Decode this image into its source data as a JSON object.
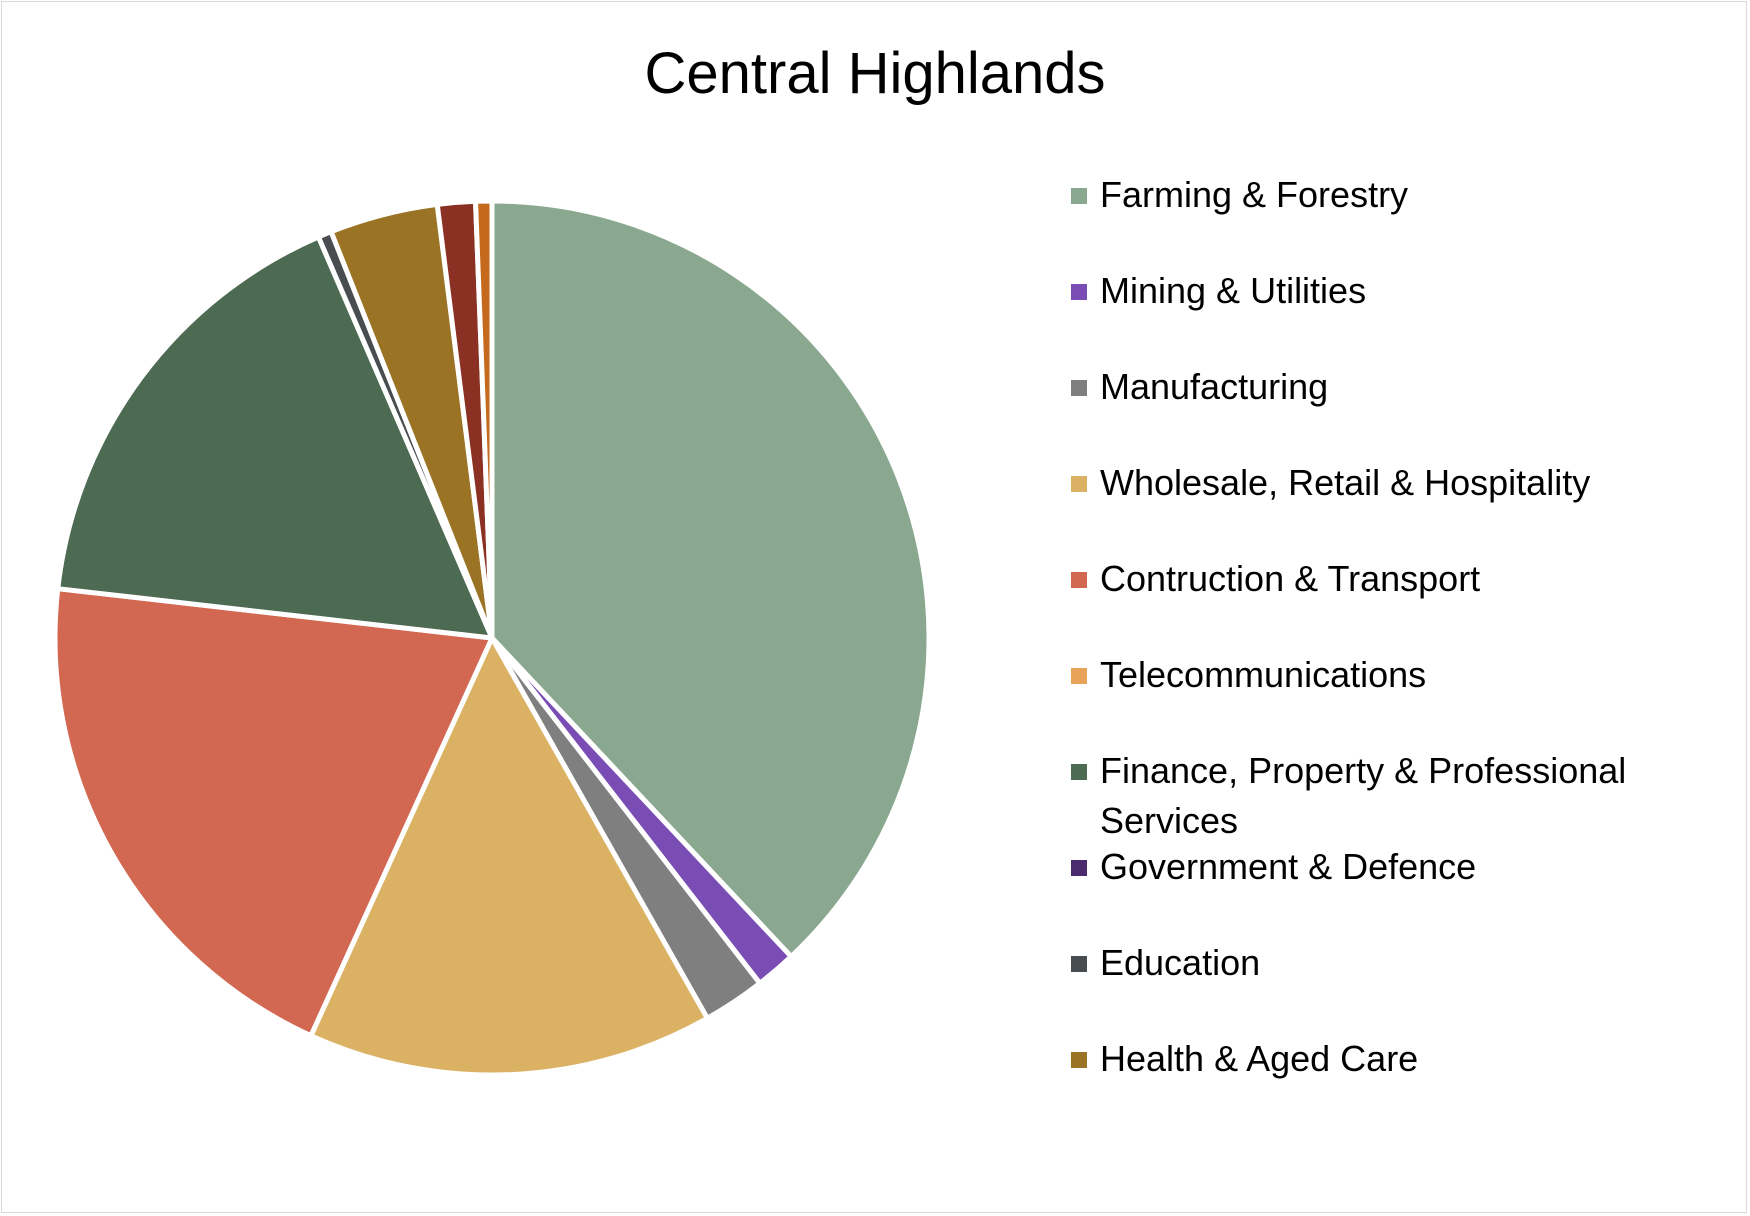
{
  "chart_data": {
    "type": "pie",
    "title": "Central Highlands",
    "legend_position": "right",
    "slices": [
      {
        "label": "Farming & Forestry",
        "value": 38.0,
        "color": "#8aa88f"
      },
      {
        "label": "Mining & Utilities",
        "value": 1.5,
        "color": "#7a4db5"
      },
      {
        "label": "Manufacturing",
        "value": 2.3,
        "color": "#7f7f7f"
      },
      {
        "label": "Wholesale, Retail & Hospitality",
        "value": 15.0,
        "color": "#dbb163"
      },
      {
        "label": "Contruction & Transport",
        "value": 20.0,
        "color": "#d26752"
      },
      {
        "label": "Telecommunications",
        "value": 0.0,
        "color": "#e8a25a"
      },
      {
        "label": "Finance, Property & Professional Services",
        "value": 16.7,
        "color": "#4d6a52"
      },
      {
        "label": "Government & Defence",
        "value": 0.0,
        "color": "#4b2a6e"
      },
      {
        "label": "Education",
        "value": 0.5,
        "color": "#4a4d50"
      },
      {
        "label": "Health & Aged Care",
        "value": 4.0,
        "color": "#9a7324"
      },
      {
        "label": "",
        "value": 1.4,
        "color": "#8b3124"
      },
      {
        "label": "",
        "value": 0.6,
        "color": "#c56a1d"
      }
    ]
  }
}
